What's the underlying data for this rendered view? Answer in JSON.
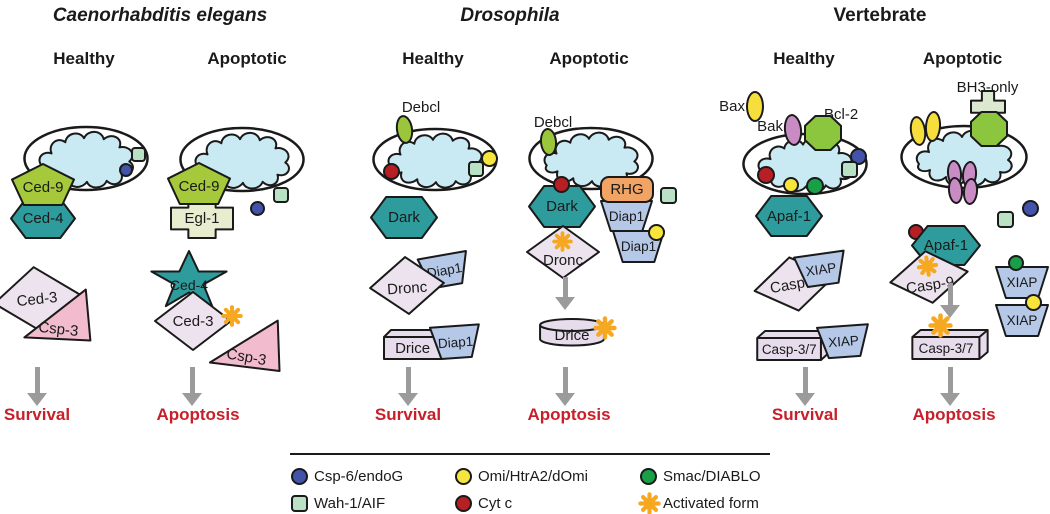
{
  "sections": {
    "celegans": {
      "title": "Caenorhabditis elegans",
      "healthy_label": "Healthy",
      "apoptotic_label": "Apoptotic",
      "healthy": {
        "ced9": "Ced-9",
        "ced4": "Ced-4",
        "ced3": "Ced-3",
        "csp3": "Csp-3",
        "outcome": "Survival"
      },
      "apoptotic": {
        "ced9": "Ced-9",
        "egl1": "Egl-1",
        "ced4": "Ced-4",
        "ced3": "Ced-3",
        "csp3": "Csp-3",
        "outcome": "Apoptosis"
      }
    },
    "drosophila": {
      "title": "Drosophila",
      "healthy_label": "Healthy",
      "apoptotic_label": "Apoptotic",
      "healthy": {
        "debcl": "Debcl",
        "dark": "Dark",
        "dronc": "Dronc",
        "diap1_upper": "Diap1",
        "drice": "Drice",
        "diap1_lower": "Diap1",
        "outcome": "Survival"
      },
      "apoptotic": {
        "debcl": "Debcl",
        "rhg": "RHG",
        "diap1_rhg": "Diap1",
        "dark": "Dark",
        "dronc": "Dronc",
        "diap1_free": "Diap1",
        "drice": "Drice",
        "outcome": "Apoptosis"
      }
    },
    "vertebrate": {
      "title": "Vertebrate",
      "healthy_label": "Healthy",
      "apoptotic_label": "Apoptotic",
      "healthy": {
        "bax": "Bax",
        "bak": "Bak",
        "bcl2": "Bcl-2",
        "apaf1": "Apaf-1",
        "casp9": "Casp-9",
        "xiap_upper": "XIAP",
        "casp37": "Casp-3/7",
        "xiap_lower": "XIAP",
        "outcome": "Survival"
      },
      "apoptotic": {
        "bh3": "BH3-only",
        "apaf1": "Apaf-1",
        "casp9": "Casp-9",
        "casp37": "Casp-3/7",
        "xiap_upper": "XIAP",
        "xiap_lower": "XIAP",
        "outcome": "Apoptosis"
      }
    }
  },
  "legend": {
    "items": [
      {
        "label": "Csp-6/endoG",
        "shape": "circle",
        "color": "#4353A9"
      },
      {
        "label": "Omi/HtrA2/dOmi",
        "shape": "circle",
        "color": "#F8E53C"
      },
      {
        "label": "Smac/DIABLO",
        "shape": "circle",
        "color": "#189F47"
      },
      {
        "label": "Wah-1/AIF",
        "shape": "square",
        "color": "#B9E1C4"
      },
      {
        "label": "Cyt c",
        "shape": "circle",
        "color": "#B71F25"
      },
      {
        "label": "Activated form",
        "shape": "asterisk",
        "color": "#F6A821"
      }
    ]
  },
  "colors": {
    "teal": "#2E9C9C",
    "yellow_green": "#A5C93A",
    "bcl2_green": "#8CC63F",
    "pale_green": "#E9EDD0",
    "bh3_green": "#DCE8D0",
    "diamond_lavender": "#EDE3EE",
    "box_lavender": "#E7DCEC",
    "csp3_pink": "#F2BCCE",
    "iap_blue": "#B5C8E8",
    "rhg_orange": "#F2A465",
    "bak_purple": "#C88BC4",
    "bax_yellow": "#F6DF3C",
    "mito_blob": "#C9EAF2",
    "arrow_gray": "#9B9B9B",
    "outcome_red": "#C8202A",
    "activated_orange": "#F6A821"
  }
}
